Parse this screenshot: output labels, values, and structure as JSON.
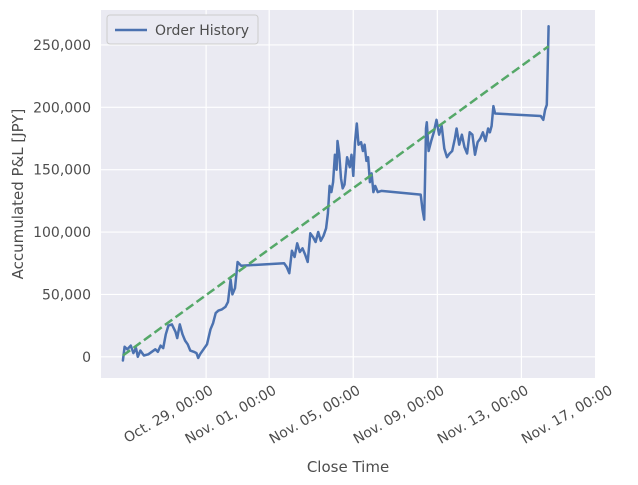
{
  "chart_data": {
    "type": "line",
    "title": "",
    "xlabel": "Close Time",
    "ylabel": "Accumulated P&L [JPY]",
    "ylim": [
      -17000,
      278000
    ],
    "xlim": [
      "2024-10-24T00:00",
      "2024-11-16T12:00"
    ],
    "x_ticks": [
      {
        "value": "2024-10-29T00:00",
        "label": "Oct. 29, 00:00"
      },
      {
        "value": "2024-11-01T00:00",
        "label": "Nov. 01, 00:00"
      },
      {
        "value": "2024-11-05T00:00",
        "label": "Nov. 05, 00:00"
      },
      {
        "value": "2024-11-09T00:00",
        "label": "Nov. 09, 00:00"
      },
      {
        "value": "2024-11-13T00:00",
        "label": "Nov. 13, 00:00"
      },
      {
        "value": "2024-11-17T00:00",
        "label": "Nov. 17, 00:00"
      }
    ],
    "y_ticks": [
      {
        "value": 0,
        "label": "0"
      },
      {
        "value": 50000,
        "label": "50,000"
      },
      {
        "value": 100000,
        "label": "100,000"
      },
      {
        "value": 150000,
        "label": "150,000"
      },
      {
        "value": 200000,
        "label": "200,000"
      },
      {
        "value": 250000,
        "label": "250,000"
      }
    ],
    "grid": true,
    "legend_position": "top-left",
    "series": [
      {
        "name": "Order History",
        "color": "#4c72b0",
        "style": "solid",
        "points": [
          [
            "2024-10-25T01:00",
            -3000
          ],
          [
            "2024-10-25T03:00",
            8000
          ],
          [
            "2024-10-25T06:00",
            6000
          ],
          [
            "2024-10-25T10:00",
            9000
          ],
          [
            "2024-10-25T13:00",
            3000
          ],
          [
            "2024-10-25T16:00",
            7000
          ],
          [
            "2024-10-25T18:00",
            0
          ],
          [
            "2024-10-25T21:00",
            5000
          ],
          [
            "2024-10-26T01:00",
            1000
          ],
          [
            "2024-10-26T06:00",
            2000
          ],
          [
            "2024-10-26T10:00",
            4000
          ],
          [
            "2024-10-26T14:00",
            6000
          ],
          [
            "2024-10-26T17:00",
            4000
          ],
          [
            "2024-10-26T20:00",
            9000
          ],
          [
            "2024-10-26T23:00",
            7000
          ],
          [
            "2024-10-27T02:00",
            18000
          ],
          [
            "2024-10-27T05:00",
            25000
          ],
          [
            "2024-10-27T09:00",
            26000
          ],
          [
            "2024-10-27T13:00",
            20000
          ],
          [
            "2024-10-27T15:00",
            15000
          ],
          [
            "2024-10-27T18:00",
            26000
          ],
          [
            "2024-10-27T21:00",
            18000
          ],
          [
            "2024-10-28T00:00",
            13000
          ],
          [
            "2024-10-28T03:00",
            10000
          ],
          [
            "2024-10-28T06:00",
            5000
          ],
          [
            "2024-10-28T10:00",
            4000
          ],
          [
            "2024-10-28T13:00",
            3000
          ],
          [
            "2024-10-28T15:00",
            -1000
          ],
          [
            "2024-10-28T17:00",
            2000
          ],
          [
            "2024-10-28T21:00",
            6000
          ],
          [
            "2024-10-29T01:00",
            10000
          ],
          [
            "2024-10-29T05:00",
            22000
          ],
          [
            "2024-10-29T08:00",
            27000
          ],
          [
            "2024-10-29T11:00",
            35000
          ],
          [
            "2024-10-29T14:00",
            37000
          ],
          [
            "2024-10-29T18:00",
            38000
          ],
          [
            "2024-10-29T22:00",
            40000
          ],
          [
            "2024-10-30T01:00",
            44000
          ],
          [
            "2024-10-30T04:00",
            62000
          ],
          [
            "2024-10-30T06:00",
            50000
          ],
          [
            "2024-10-30T09:00",
            55000
          ],
          [
            "2024-10-30T12:00",
            76000
          ],
          [
            "2024-10-30T16:00",
            73000
          ],
          [
            "2024-11-01T17:00",
            75000
          ],
          [
            "2024-11-01T20:00",
            72000
          ],
          [
            "2024-11-01T23:00",
            67000
          ],
          [
            "2024-11-02T02:00",
            85000
          ],
          [
            "2024-11-02T05:00",
            80000
          ],
          [
            "2024-11-02T08:00",
            91000
          ],
          [
            "2024-11-02T11:00",
            84000
          ],
          [
            "2024-11-02T14:00",
            87000
          ],
          [
            "2024-11-02T17:00",
            82000
          ],
          [
            "2024-11-02T20:00",
            76000
          ],
          [
            "2024-11-02T23:00",
            99000
          ],
          [
            "2024-11-03T02:00",
            96000
          ],
          [
            "2024-11-03T05:00",
            92000
          ],
          [
            "2024-11-03T08:00",
            100000
          ],
          [
            "2024-11-03T11:00",
            93000
          ],
          [
            "2024-11-03T14:00",
            97000
          ],
          [
            "2024-11-03T17:00",
            103000
          ],
          [
            "2024-11-03T19:00",
            115000
          ],
          [
            "2024-11-03T21:00",
            137000
          ],
          [
            "2024-11-03T23:00",
            132000
          ],
          [
            "2024-11-04T01:00",
            140000
          ],
          [
            "2024-11-04T03:00",
            162000
          ],
          [
            "2024-11-04T05:00",
            150000
          ],
          [
            "2024-11-04T06:00",
            173000
          ],
          [
            "2024-11-04T08:00",
            163000
          ],
          [
            "2024-11-04T10:00",
            143000
          ],
          [
            "2024-11-04T12:00",
            135000
          ],
          [
            "2024-11-04T14:00",
            138000
          ],
          [
            "2024-11-04T17:00",
            160000
          ],
          [
            "2024-11-04T20:00",
            152000
          ],
          [
            "2024-11-04T22:00",
            162000
          ],
          [
            "2024-11-05T00:00",
            145000
          ],
          [
            "2024-11-05T02:00",
            172000
          ],
          [
            "2024-11-05T04:00",
            187000
          ],
          [
            "2024-11-05T06:00",
            170000
          ],
          [
            "2024-11-05T09:00",
            172000
          ],
          [
            "2024-11-05T11:00",
            165000
          ],
          [
            "2024-11-05T13:00",
            170000
          ],
          [
            "2024-11-05T15:00",
            157000
          ],
          [
            "2024-11-05T17:00",
            160000
          ],
          [
            "2024-11-05T19:00",
            140000
          ],
          [
            "2024-11-05T21:00",
            147000
          ],
          [
            "2024-11-05T23:00",
            132000
          ],
          [
            "2024-11-06T01:00",
            137000
          ],
          [
            "2024-11-06T04:00",
            132000
          ],
          [
            "2024-11-06T08:00",
            133000
          ],
          [
            "2024-11-08T05:00",
            130000
          ],
          [
            "2024-11-08T07:00",
            118000
          ],
          [
            "2024-11-08T09:00",
            110000
          ],
          [
            "2024-11-08T10:00",
            145000
          ],
          [
            "2024-11-08T11:00",
            183000
          ],
          [
            "2024-11-08T12:00",
            188000
          ],
          [
            "2024-11-08T14:00",
            165000
          ],
          [
            "2024-11-08T17:00",
            173000
          ],
          [
            "2024-11-08T20:00",
            180000
          ],
          [
            "2024-11-08T23:00",
            190000
          ],
          [
            "2024-11-09T02:00",
            178000
          ],
          [
            "2024-11-09T05:00",
            185000
          ],
          [
            "2024-11-09T08:00",
            167000
          ],
          [
            "2024-11-09T11:00",
            160000
          ],
          [
            "2024-11-09T14:00",
            163000
          ],
          [
            "2024-11-09T17:00",
            165000
          ],
          [
            "2024-11-09T20:00",
            175000
          ],
          [
            "2024-11-09T22:00",
            183000
          ],
          [
            "2024-11-10T01:00",
            170000
          ],
          [
            "2024-11-10T04:00",
            178000
          ],
          [
            "2024-11-10T07:00",
            168000
          ],
          [
            "2024-11-10T10:00",
            163000
          ],
          [
            "2024-11-10T13:00",
            180000
          ],
          [
            "2024-11-10T16:00",
            178000
          ],
          [
            "2024-11-10T19:00",
            162000
          ],
          [
            "2024-11-10T22:00",
            172000
          ],
          [
            "2024-11-11T01:00",
            175000
          ],
          [
            "2024-11-11T04:00",
            180000
          ],
          [
            "2024-11-11T07:00",
            173000
          ],
          [
            "2024-11-11T10:00",
            183000
          ],
          [
            "2024-11-11T12:00",
            180000
          ],
          [
            "2024-11-11T14:00",
            185000
          ],
          [
            "2024-11-11T16:00",
            201000
          ],
          [
            "2024-11-11T18:00",
            195000
          ],
          [
            "2024-11-13T22:00",
            193000
          ],
          [
            "2024-11-14T01:00",
            190000
          ],
          [
            "2024-11-14T03:00",
            198000
          ],
          [
            "2024-11-14T05:00",
            202000
          ],
          [
            "2024-11-14T06:00",
            232000
          ],
          [
            "2024-11-14T07:00",
            265000
          ]
        ]
      },
      {
        "name": "",
        "color": "#55a868",
        "style": "dashed",
        "points": [
          [
            "2024-10-25T01:00",
            1000
          ],
          [
            "2024-11-14T07:00",
            249000
          ]
        ]
      }
    ]
  }
}
